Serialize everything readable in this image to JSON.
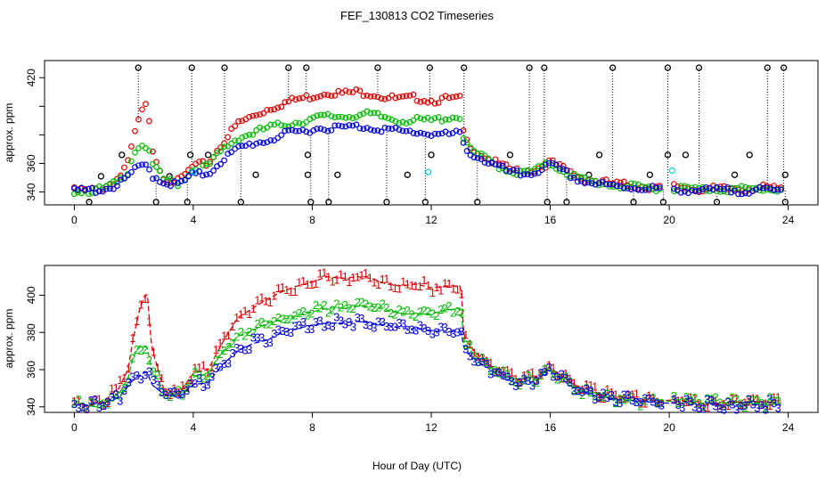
{
  "title": "FEF_130813  CO2 Timeseries",
  "colors": {
    "series1": "#dd0000",
    "series2": "#00bb00",
    "series3": "#0000dd",
    "flag": "#000000",
    "cyan": "#00cccc"
  },
  "chart_data": [
    {
      "type": "scatter",
      "panel": "top",
      "ylabel": "approx. ppm",
      "xlabel": "",
      "xlim": [
        -1,
        25
      ],
      "ylim": [
        331,
        432
      ],
      "xticks": [
        0,
        4,
        8,
        12,
        16,
        20,
        24
      ],
      "yticks": [
        340,
        360,
        380,
        400,
        420
      ],
      "ytick_labels": [
        "340",
        "360",
        "",
        "",
        "420"
      ],
      "flag_high": 427,
      "flag_low": 333,
      "flags_high_x": [
        2.15,
        3.95,
        5.05,
        7.2,
        7.8,
        10.2,
        11.95,
        13.1,
        15.3,
        15.8,
        18.1,
        19.95,
        21.0,
        23.3,
        23.85
      ],
      "flags_low_x": [
        0.5,
        2.75,
        3.8,
        5.6,
        7.95,
        8.55,
        10.5,
        11.8,
        13.55,
        15.9,
        16.55,
        18.8,
        19.8,
        21.6,
        23.9
      ],
      "flags_mid": [
        {
          "x": 0.9,
          "y": 351
        },
        {
          "x": 1.6,
          "y": 366
        },
        {
          "x": 3.2,
          "y": 351
        },
        {
          "x": 4.5,
          "y": 366
        },
        {
          "x": 6.1,
          "y": 352
        },
        {
          "x": 7.85,
          "y": 352
        },
        {
          "x": 8.85,
          "y": 352
        },
        {
          "x": 11.2,
          "y": 352
        },
        {
          "x": 14.65,
          "y": 366
        },
        {
          "x": 17.3,
          "y": 352
        },
        {
          "x": 17.65,
          "y": 366
        },
        {
          "x": 19.35,
          "y": 352
        },
        {
          "x": 20.55,
          "y": 366
        },
        {
          "x": 22.2,
          "y": 352
        },
        {
          "x": 22.7,
          "y": 366
        },
        {
          "x": 23.9,
          "y": 352
        },
        {
          "x": 3.9,
          "y": 366
        },
        {
          "x": 7.85,
          "y": 366
        },
        {
          "x": 12.0,
          "y": 366
        },
        {
          "x": 19.95,
          "y": 366
        }
      ],
      "cyan_points": [
        {
          "x": 4.0,
          "y": 354
        },
        {
          "x": 11.9,
          "y": 354
        },
        {
          "x": 20.1,
          "y": 355
        }
      ]
    },
    {
      "type": "line",
      "panel": "bottom",
      "ylabel": "approx. ppm",
      "xlabel": "Hour of Day (UTC)",
      "xlim": [
        -1,
        25
      ],
      "ylim": [
        337,
        416
      ],
      "xticks": [
        0,
        4,
        8,
        12,
        16,
        20,
        24
      ],
      "yticks": [
        340,
        360,
        380,
        400
      ],
      "markers": [
        "1",
        "2",
        "3"
      ],
      "series": [
        {
          "name": "1",
          "x": [
            0,
            0.5,
            1,
            1.5,
            1.8,
            2,
            2.2,
            2.45,
            2.6,
            3,
            3.5,
            4,
            4.5,
            5,
            5.5,
            6,
            6.5,
            7,
            7.5,
            8,
            8.5,
            9,
            9.5,
            10,
            10.5,
            11,
            11.5,
            12,
            12.5,
            13,
            13.1,
            13.5,
            14,
            14.5,
            15,
            15.5,
            16,
            17,
            18,
            19,
            19.8,
            20.2,
            21,
            22,
            23,
            23.8
          ],
          "y": [
            341,
            341,
            343,
            350,
            360,
            378,
            393,
            402,
            372,
            350,
            347,
            358,
            360,
            375,
            388,
            393,
            398,
            402,
            405,
            407,
            410,
            409,
            410,
            409,
            406,
            405,
            406,
            404,
            405,
            405,
            377,
            369,
            362,
            357,
            354,
            356,
            361,
            350,
            346,
            344,
            343,
            344,
            342,
            342,
            343,
            342
          ]
        },
        {
          "name": "2",
          "x": [
            0,
            0.5,
            1,
            1.5,
            1.8,
            2,
            2.2,
            2.45,
            2.6,
            3,
            3.5,
            4,
            4.5,
            5,
            5.5,
            6,
            6.5,
            7,
            7.5,
            8,
            8.5,
            9,
            9.5,
            10,
            10.5,
            11,
            11.5,
            12,
            12.5,
            13,
            13.1,
            13.5,
            14,
            14.5,
            15,
            15.5,
            16,
            17,
            18,
            19,
            19.8,
            20.2,
            21,
            22,
            23,
            23.8
          ],
          "y": [
            341,
            341,
            342,
            347,
            355,
            368,
            373,
            372,
            360,
            349,
            346,
            356,
            358,
            370,
            378,
            381,
            385,
            387,
            389,
            391,
            393,
            393,
            394,
            394,
            392,
            390,
            390,
            390,
            392,
            393,
            374,
            367,
            361,
            356,
            353,
            355,
            360,
            349,
            345,
            343,
            343,
            343,
            342,
            342,
            342,
            342
          ]
        },
        {
          "name": "3",
          "x": [
            0,
            0.5,
            1,
            1.5,
            1.8,
            2,
            2.2,
            2.45,
            2.6,
            3,
            3.5,
            4,
            4.5,
            5,
            5.5,
            6,
            6.5,
            7,
            7.5,
            8,
            8.5,
            9,
            9.5,
            10,
            10.5,
            11,
            11.5,
            12,
            12.5,
            13,
            13.1,
            13.5,
            14,
            14.5,
            15,
            15.5,
            16,
            17,
            18,
            19,
            19.8,
            20.2,
            21,
            22,
            23,
            23.8
          ],
          "y": [
            341,
            341,
            342,
            345,
            351,
            355,
            357,
            359,
            352,
            347,
            345,
            352,
            353,
            363,
            370,
            374,
            376,
            380,
            382,
            384,
            385,
            385,
            386,
            385,
            384,
            382,
            382,
            381,
            380,
            381,
            371,
            365,
            360,
            355,
            352,
            354,
            359,
            348,
            344,
            343,
            342,
            342,
            341,
            341,
            341,
            341
          ]
        }
      ]
    }
  ]
}
